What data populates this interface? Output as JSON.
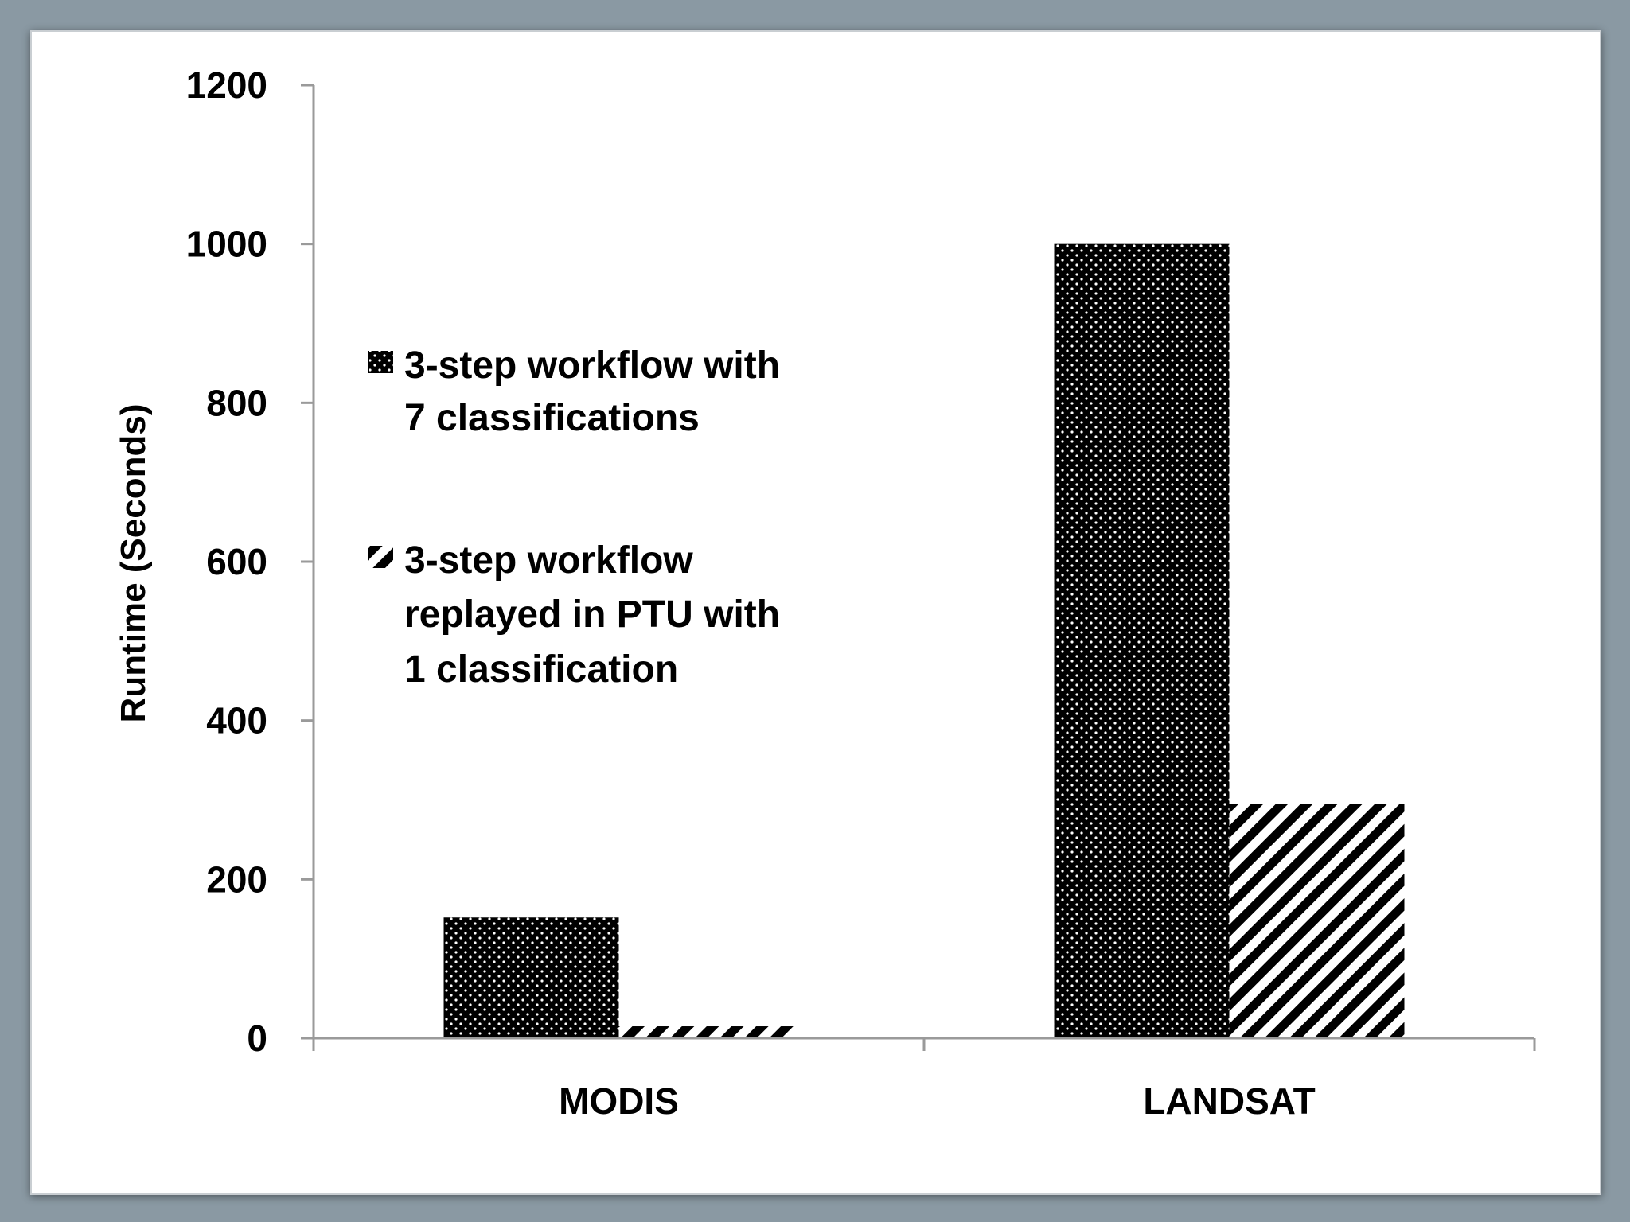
{
  "chart_data": {
    "type": "bar",
    "categories": [
      "MODIS",
      "LANDSAT"
    ],
    "series": [
      {
        "name": "3-step workflow with 7 classifications",
        "values": [
          152,
          1000
        ],
        "pattern": "dots"
      },
      {
        "name": "3-step workflow replayed in PTU with 1 classification",
        "values": [
          15,
          295
        ],
        "pattern": "stripes"
      }
    ],
    "title": "",
    "xlabel": "",
    "ylabel": "Runtime (Seconds)",
    "ylim": [
      0,
      1200
    ],
    "yticks": [
      0,
      200,
      400,
      600,
      800,
      1000,
      1200
    ],
    "grid": false,
    "legend": {
      "position": "upper-left-inside",
      "entries": [
        {
          "lines": [
            "3-step workflow with",
            "7 classifications"
          ]
        },
        {
          "lines": [
            "3-step workflow",
            "replayed in PTU with",
            "1 classification"
          ]
        }
      ]
    },
    "colors": {
      "bar_fill": "#000000",
      "pattern_ink": "#ffffff",
      "axis": "#9a9a9a",
      "background": "#ffffff",
      "frame_background": "#8a99a3"
    }
  }
}
